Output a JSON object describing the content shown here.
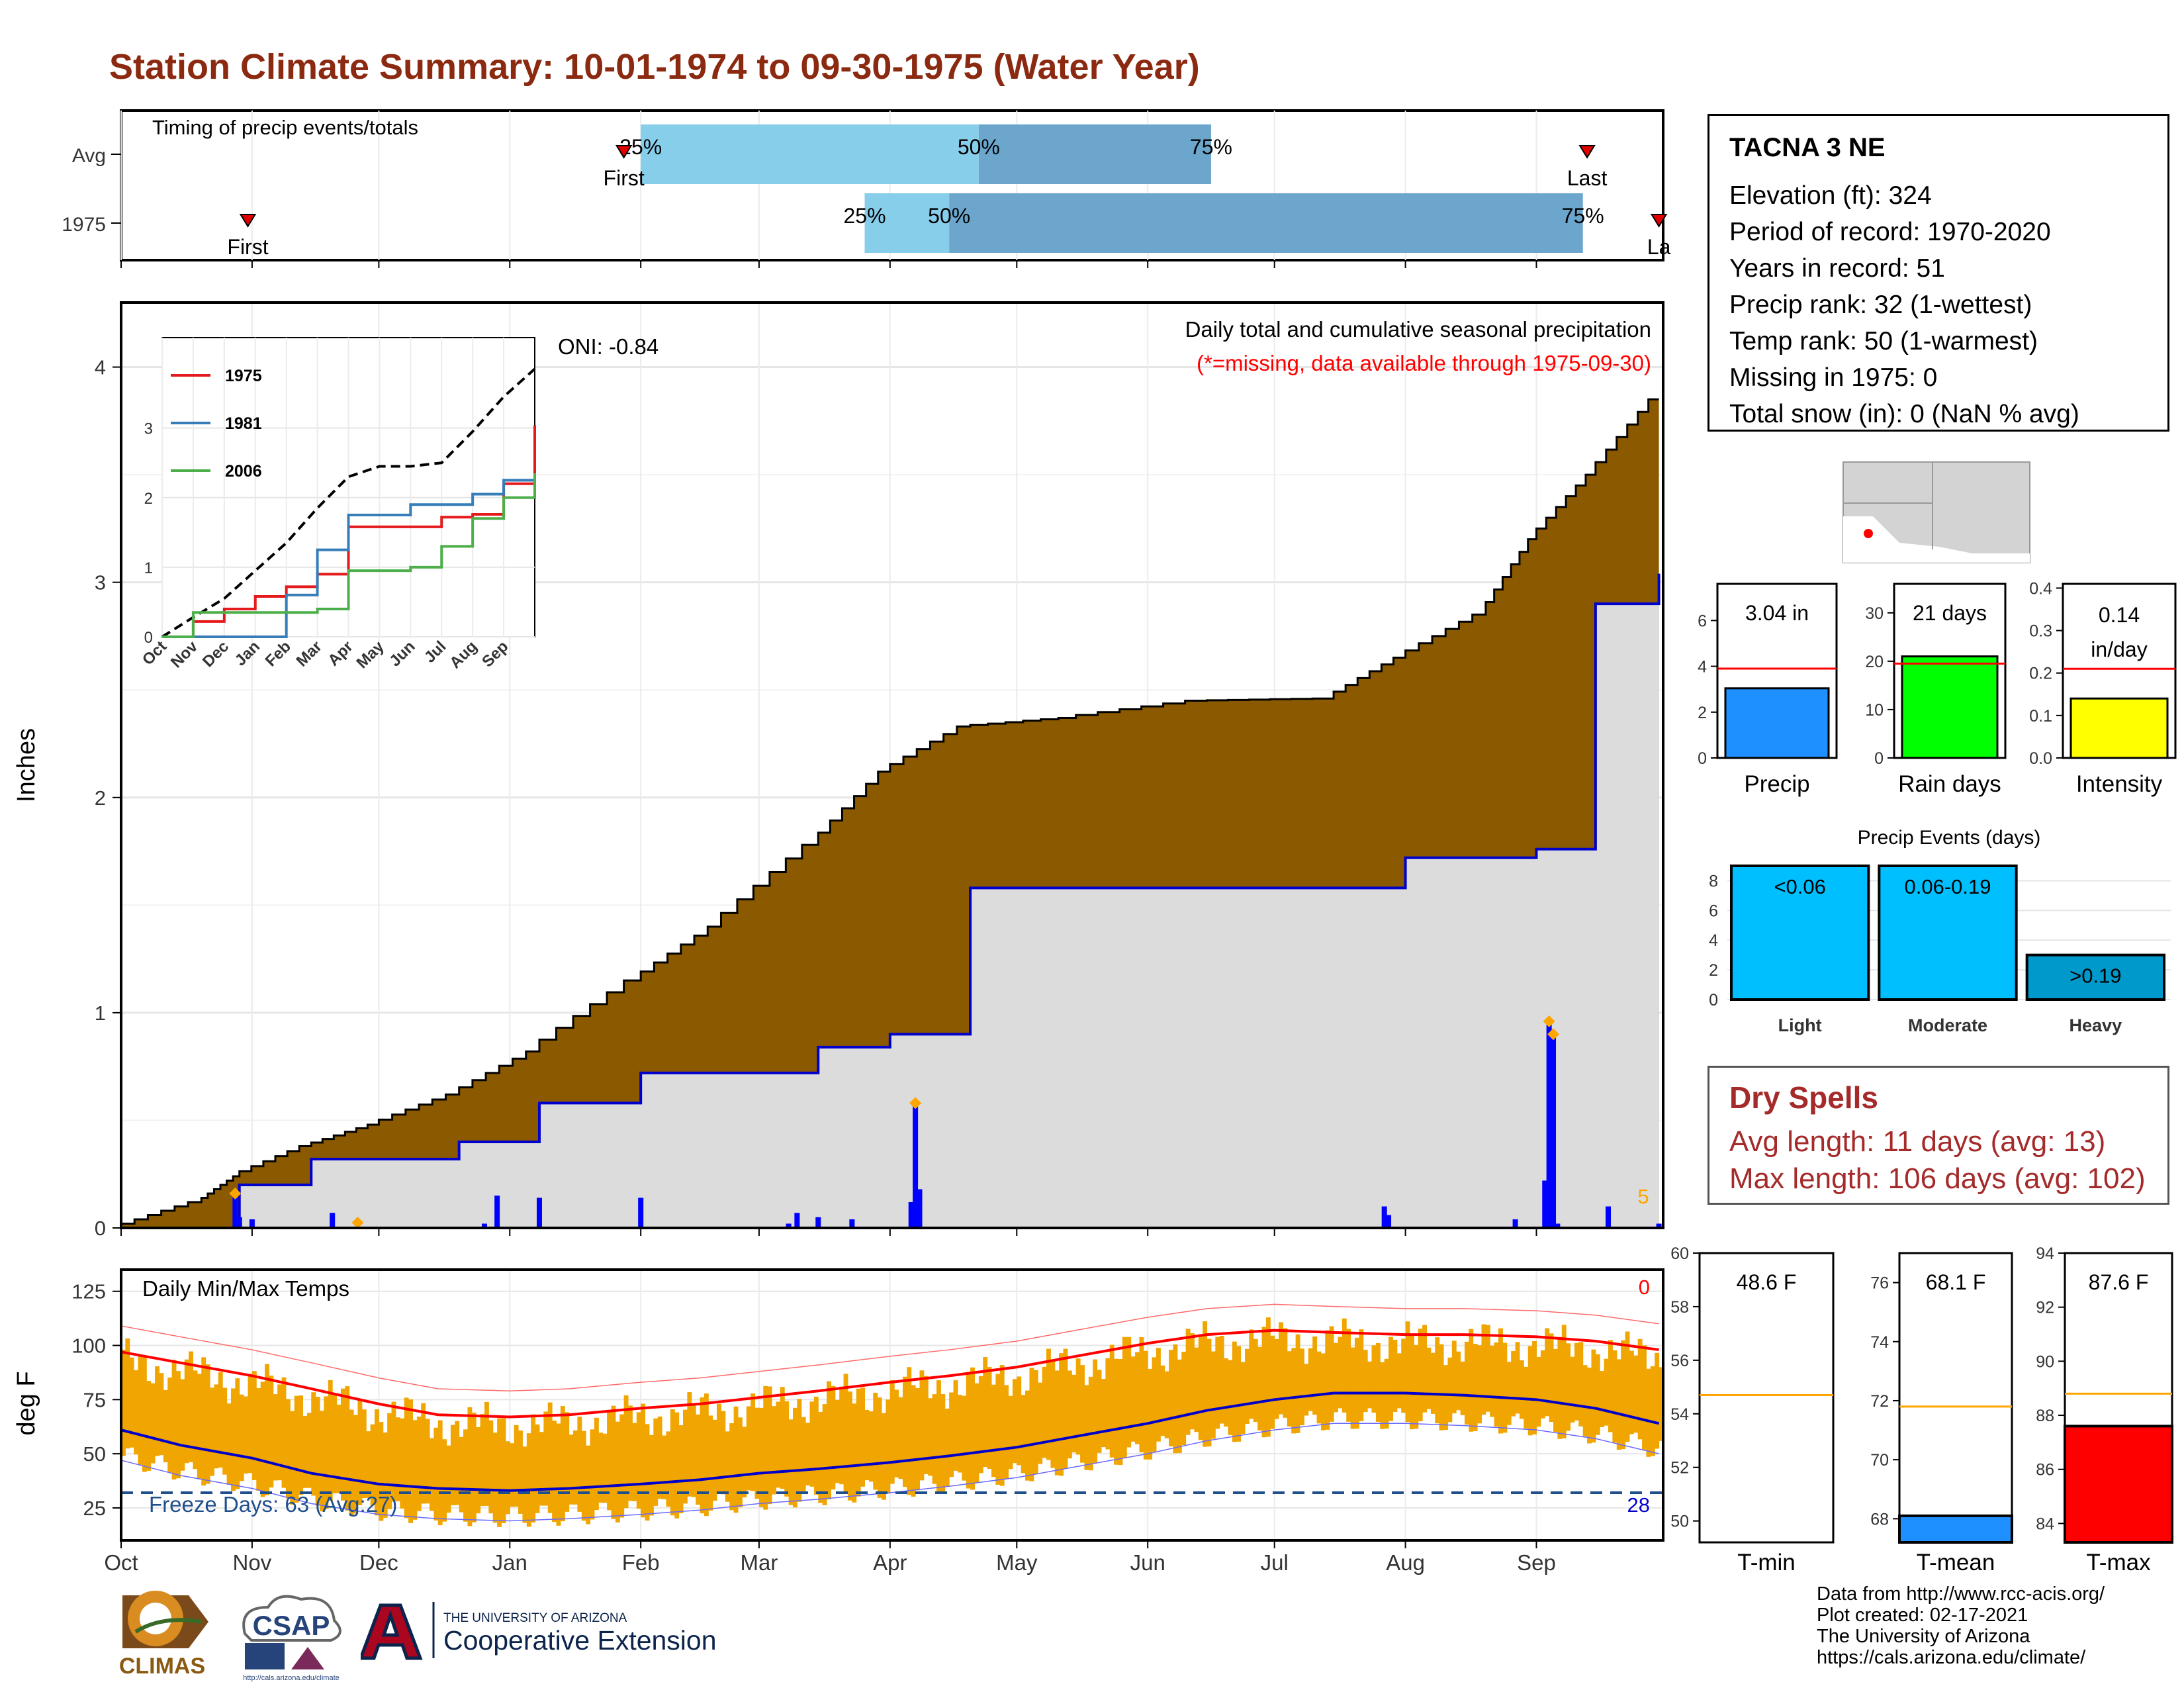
{
  "title": "Station Climate Summary: 10-01-1974 to 09-30-1975 (Water Year)",
  "timing": {
    "title": "Timing of precip events/totals",
    "rows": [
      {
        "label": "Avg",
        "first_label": "First",
        "last_label": "Last",
        "q25": "25%",
        "q50": "50%",
        "q75": "75%"
      },
      {
        "label": "1975",
        "first_label": "First",
        "last_label": "La",
        "q25": "25%",
        "q50": "50%",
        "q75": "75%"
      }
    ]
  },
  "station": {
    "name": "TACNA 3 NE",
    "rows": [
      "Elevation (ft): 324",
      "Period of record: 1970-2020",
      "Years in record: 51",
      "Precip rank: 32 (1-wettest)",
      "Temp rank: 50 (1-warmest)",
      "Missing in 1975: 0",
      "Total snow (in): 0 (NaN % avg)"
    ]
  },
  "precip_panel": {
    "ylabel": "Inches",
    "yticks": [
      "0",
      "1",
      "2",
      "3",
      "4"
    ],
    "oni": "ONI: -0.84",
    "header": "Daily total and cumulative seasonal precipitation",
    "missing_note": "(*=missing, data available through 1975-09-30)",
    "corner_count": "5"
  },
  "inset": {
    "legend": [
      "1975",
      "1981",
      "2006"
    ],
    "yticks": [
      "0",
      "1",
      "2",
      "3"
    ],
    "xticks": [
      "Oct",
      "Nov",
      "Dec",
      "Jan",
      "Feb",
      "Mar",
      "Apr",
      "May",
      "Jun",
      "Jul",
      "Aug",
      "Sep"
    ]
  },
  "temp_panel": {
    "ylabel": "deg F",
    "title": "Daily Min/Max Temps",
    "yticks": [
      "25",
      "50",
      "75",
      "100",
      "125"
    ],
    "freeze_label": "Freeze Days: 63 (Avg:27)",
    "top_count": "0",
    "bottom_count": "28"
  },
  "months": [
    "Oct",
    "Nov",
    "Dec",
    "Jan",
    "Feb",
    "Mar",
    "Apr",
    "May",
    "Jun",
    "Jul",
    "Aug",
    "Sep"
  ],
  "mini_bars": [
    {
      "label": "Precip",
      "value_label": "3.04 in",
      "yticks": [
        "0",
        "2",
        "4",
        "6"
      ]
    },
    {
      "label": "Rain days",
      "value_label": "21 days",
      "yticks": [
        "0",
        "10",
        "20",
        "30"
      ]
    },
    {
      "label": "Intensity",
      "value_label": "0.14 in/day",
      "yticks": [
        "0.0",
        "0.1",
        "0.2",
        "0.3",
        "0.4"
      ]
    }
  ],
  "events": {
    "title": "Precip Events (days)",
    "yticks": [
      "0",
      "2",
      "4",
      "6",
      "8"
    ],
    "bars": [
      {
        "label": "Light",
        "value_label": "<0.06"
      },
      {
        "label": "Moderate",
        "value_label": "0.06-0.19"
      },
      {
        "label": "Heavy",
        "value_label": ">0.19"
      }
    ]
  },
  "dry": {
    "title": "Dry Spells",
    "avg": "Avg length: 11 days (avg: 13)",
    "max": "Max length: 106 days (avg: 102)"
  },
  "temp_bars": [
    {
      "label": "T-min",
      "value_label": "48.6 F",
      "yticks": [
        "50",
        "52",
        "54",
        "56",
        "58",
        "60"
      ]
    },
    {
      "label": "T-mean",
      "value_label": "68.1 F",
      "yticks": [
        "68",
        "70",
        "72",
        "74",
        "76"
      ]
    },
    {
      "label": "T-max",
      "value_label": "87.6 F",
      "yticks": [
        "84",
        "86",
        "88",
        "90",
        "92",
        "94"
      ]
    }
  ],
  "credits": [
    "Data from http://www.rcc-acis.org/",
    "Plot created: 02-17-2021",
    "The University of Arizona",
    "https://cals.arizona.edu/climate/"
  ],
  "logos": {
    "climas": "CLIMAS",
    "csap": "CSAP",
    "csap_url": "http://cals.arizona.edu/climate",
    "ua_line1": "THE UNIVERSITY OF ARIZONA",
    "ua_line2": "Cooperative Extension"
  },
  "colors": {
    "title": "#8b2a10",
    "cumulative_fill": "#8b5a00",
    "average_line": "#0000cc",
    "daily_bar": "#0000ff",
    "tmax_avg": "#ff0000",
    "tmin_avg": "#0000cc",
    "temp_range": "#f0a500",
    "missing_marker": "#ffa500"
  },
  "chart_data": [
    {
      "type": "bar",
      "title": "Timing of precip events/totals",
      "categories": [
        "Avg",
        "1975"
      ],
      "series": [
        {
          "name": "First",
          "values": [
            "Jan 28",
            "Oct 31"
          ]
        },
        {
          "name": "25%",
          "values": [
            "Feb 1",
            "Mar 26"
          ]
        },
        {
          "name": "50%",
          "values": [
            "Apr 22",
            "Apr 15"
          ]
        },
        {
          "name": "75%",
          "values": [
            "Jun 16",
            "Sep 12"
          ]
        },
        {
          "name": "Last",
          "values": [
            "Sep 13",
            "Sep 30"
          ]
        }
      ]
    },
    {
      "type": "area",
      "title": "Daily total and cumulative seasonal precipitation",
      "ylabel": "Inches",
      "ylim": [
        0,
        4.3
      ],
      "x": [
        "Oct 1",
        "Oct 20",
        "Oct 29",
        "Nov 15",
        "Dec 1",
        "Dec 20",
        "Jan 8",
        "Feb 1",
        "Feb 20",
        "Mar 15",
        "Apr 1",
        "Apr 20",
        "May 15",
        "Jun 15",
        "Jul 15",
        "Aug 1",
        "Aug 20",
        "Sep 1",
        "Sep 15",
        "Sep 30"
      ],
      "series": [
        {
          "name": "average",
          "values": [
            0.0,
            0.12,
            0.24,
            0.38,
            0.48,
            0.62,
            0.82,
            1.15,
            1.4,
            1.78,
            2.12,
            2.33,
            2.37,
            2.45,
            2.46,
            2.65,
            2.85,
            3.2,
            3.5,
            3.85
          ]
        },
        {
          "name": "1975",
          "values": [
            0.0,
            0.0,
            0.2,
            0.32,
            0.32,
            0.4,
            0.58,
            0.72,
            0.72,
            0.84,
            0.9,
            1.58,
            1.58,
            1.58,
            1.58,
            1.72,
            1.72,
            1.76,
            2.9,
            3.04
          ]
        }
      ],
      "daily_x": [
        "Oct 28",
        "Oct 29",
        "Nov 1",
        "Nov 20",
        "Dec 26",
        "Dec 29",
        "Jan 8",
        "Feb 1",
        "Mar 8",
        "Mar 10",
        "Mar 15",
        "Mar 23",
        "Apr 6",
        "Apr 7",
        "Apr 8",
        "Jul 27",
        "Jul 28",
        "Aug 27",
        "Sep 3",
        "Sep 4",
        "Sep 5",
        "Sep 6",
        "Sep 18",
        "Sep 30"
      ],
      "daily_values": [
        0.16,
        0.05,
        0.04,
        0.07,
        0.02,
        0.15,
        0.14,
        0.14,
        0.02,
        0.07,
        0.05,
        0.04,
        0.12,
        0.58,
        0.18,
        0.1,
        0.06,
        0.04,
        0.22,
        0.96,
        0.9,
        0.02,
        0.1,
        0.02
      ]
    },
    {
      "type": "line",
      "title": "",
      "x": [
        "Oct",
        "Nov",
        "Dec",
        "Jan",
        "Feb",
        "Mar",
        "Apr",
        "May",
        "Jun",
        "Jul",
        "Aug",
        "Sep",
        "Oct"
      ],
      "series": [
        {
          "name": "average",
          "values": [
            0.0,
            0.28,
            0.55,
            0.95,
            1.35,
            1.85,
            2.3,
            2.45,
            2.45,
            2.5,
            2.95,
            3.45,
            3.85
          ]
        },
        {
          "name": "1975",
          "values": [
            0.0,
            0.22,
            0.4,
            0.58,
            0.72,
            0.9,
            1.58,
            1.58,
            1.58,
            1.72,
            1.76,
            2.2,
            3.04
          ]
        },
        {
          "name": "1981",
          "values": [
            0.0,
            0.0,
            0.0,
            0.0,
            0.6,
            1.25,
            1.75,
            1.75,
            1.9,
            1.9,
            2.05,
            2.25,
            2.3
          ]
        },
        {
          "name": "2006",
          "values": [
            0.0,
            0.35,
            0.35,
            0.35,
            0.35,
            0.4,
            0.95,
            0.95,
            1.0,
            1.3,
            1.7,
            2.0,
            2.35
          ]
        }
      ],
      "ylim": [
        0,
        4.3
      ]
    },
    {
      "type": "line",
      "title": "Daily Min/Max Temps",
      "ylabel": "deg F",
      "ylim": [
        10,
        135
      ],
      "x": [
        "Oct 1",
        "Oct 15",
        "Nov 1",
        "Nov 15",
        "Dec 1",
        "Dec 15",
        "Jan 1",
        "Jan 15",
        "Feb 1",
        "Feb 15",
        "Mar 1",
        "Mar 15",
        "Apr 1",
        "Apr 15",
        "May 1",
        "May 15",
        "Jun 1",
        "Jun 15",
        "Jul 1",
        "Jul 15",
        "Aug 1",
        "Aug 15",
        "Sep 1",
        "Sep 15",
        "Sep 30"
      ],
      "series": [
        {
          "name": "avg max",
          "values": [
            97,
            92,
            86,
            80,
            73,
            68,
            67,
            68,
            71,
            73,
            76,
            79,
            83,
            86,
            90,
            95,
            101,
            105,
            107,
            106,
            105,
            105,
            104,
            102,
            98
          ]
        },
        {
          "name": "avg min",
          "values": [
            61,
            54,
            48,
            41,
            36,
            34,
            33,
            34,
            36,
            38,
            41,
            43,
            46,
            49,
            53,
            58,
            64,
            70,
            75,
            78,
            78,
            77,
            75,
            71,
            64
          ]
        },
        {
          "name": "freeze line",
          "values": [
            32,
            32,
            32,
            32,
            32,
            32,
            32,
            32,
            32,
            32,
            32,
            32,
            32,
            32,
            32,
            32,
            32,
            32,
            32,
            32,
            32,
            32,
            32,
            32,
            32
          ]
        }
      ]
    },
    {
      "type": "bar",
      "title": "",
      "categories": [
        "Precip",
        "Rain days",
        "Intensity"
      ],
      "series": [
        {
          "name": "1975",
          "values": [
            3.04,
            21,
            0.14
          ]
        },
        {
          "name": "average",
          "values": [
            3.9,
            19.5,
            0.21
          ]
        }
      ]
    },
    {
      "type": "bar",
      "title": "Precip Events (days)",
      "categories": [
        "Light",
        "Moderate",
        "Heavy"
      ],
      "values": [
        9,
        9,
        3
      ],
      "ylim": [
        0,
        9
      ]
    },
    {
      "type": "bar",
      "title": "",
      "categories": [
        "T-min",
        "T-mean",
        "T-max"
      ],
      "series": [
        {
          "name": "1975",
          "values": [
            48.6,
            68.1,
            87.6
          ]
        },
        {
          "name": "average",
          "values": [
            54.7,
            71.8,
            88.8
          ]
        }
      ]
    }
  ]
}
